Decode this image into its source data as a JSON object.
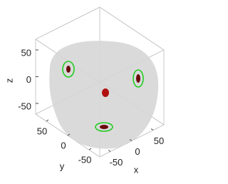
{
  "chart_data": {
    "type": "scatter3d",
    "xlabel": "x",
    "ylabel": "y",
    "zlabel": "z",
    "xlim": [
      -75,
      75
    ],
    "ylim": [
      -75,
      75
    ],
    "zlim": [
      -70,
      70
    ],
    "xticks": [
      -50,
      0,
      50
    ],
    "yticks": [
      -50,
      0,
      50
    ],
    "zticks": [
      -50,
      0,
      50
    ]
  }
}
